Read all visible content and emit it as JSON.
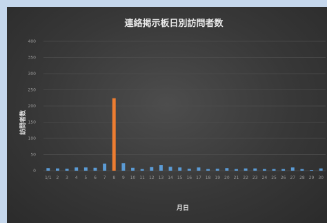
{
  "chart_data": {
    "type": "bar",
    "title": "連絡掲示板日別訪問者数",
    "xlabel": "月日",
    "ylabel": "訪問者数",
    "ylim": [
      0,
      400
    ],
    "yticks": [
      0,
      50,
      100,
      150,
      200,
      250,
      300,
      350,
      400
    ],
    "grid": true,
    "categories": [
      "1/1",
      "2",
      "3",
      "4",
      "5",
      "6",
      "7",
      "8",
      "9",
      "10",
      "11",
      "12",
      "13",
      "14",
      "15",
      "16",
      "17",
      "18",
      "19",
      "20",
      "21",
      "22",
      "23",
      "24",
      "25",
      "26",
      "27",
      "28",
      "29",
      "30"
    ],
    "values": [
      8,
      7,
      6,
      10,
      10,
      9,
      22,
      224,
      23,
      9,
      5,
      11,
      17,
      12,
      10,
      6,
      10,
      5,
      6,
      8,
      5,
      7,
      7,
      5,
      5,
      5,
      10,
      5,
      2,
      7
    ],
    "bar_colors": [
      "#5b9bd5",
      "#5b9bd5",
      "#5b9bd5",
      "#5b9bd5",
      "#5b9bd5",
      "#5b9bd5",
      "#5b9bd5",
      "#ed7d31",
      "#5b9bd5",
      "#5b9bd5",
      "#5b9bd5",
      "#5b9bd5",
      "#5b9bd5",
      "#5b9bd5",
      "#5b9bd5",
      "#5b9bd5",
      "#5b9bd5",
      "#5b9bd5",
      "#5b9bd5",
      "#5b9bd5",
      "#5b9bd5",
      "#5b9bd5",
      "#5b9bd5",
      "#5b9bd5",
      "#5b9bd5",
      "#5b9bd5",
      "#5b9bd5",
      "#5b9bd5",
      "#5b9bd5",
      "#5b9bd5"
    ]
  }
}
